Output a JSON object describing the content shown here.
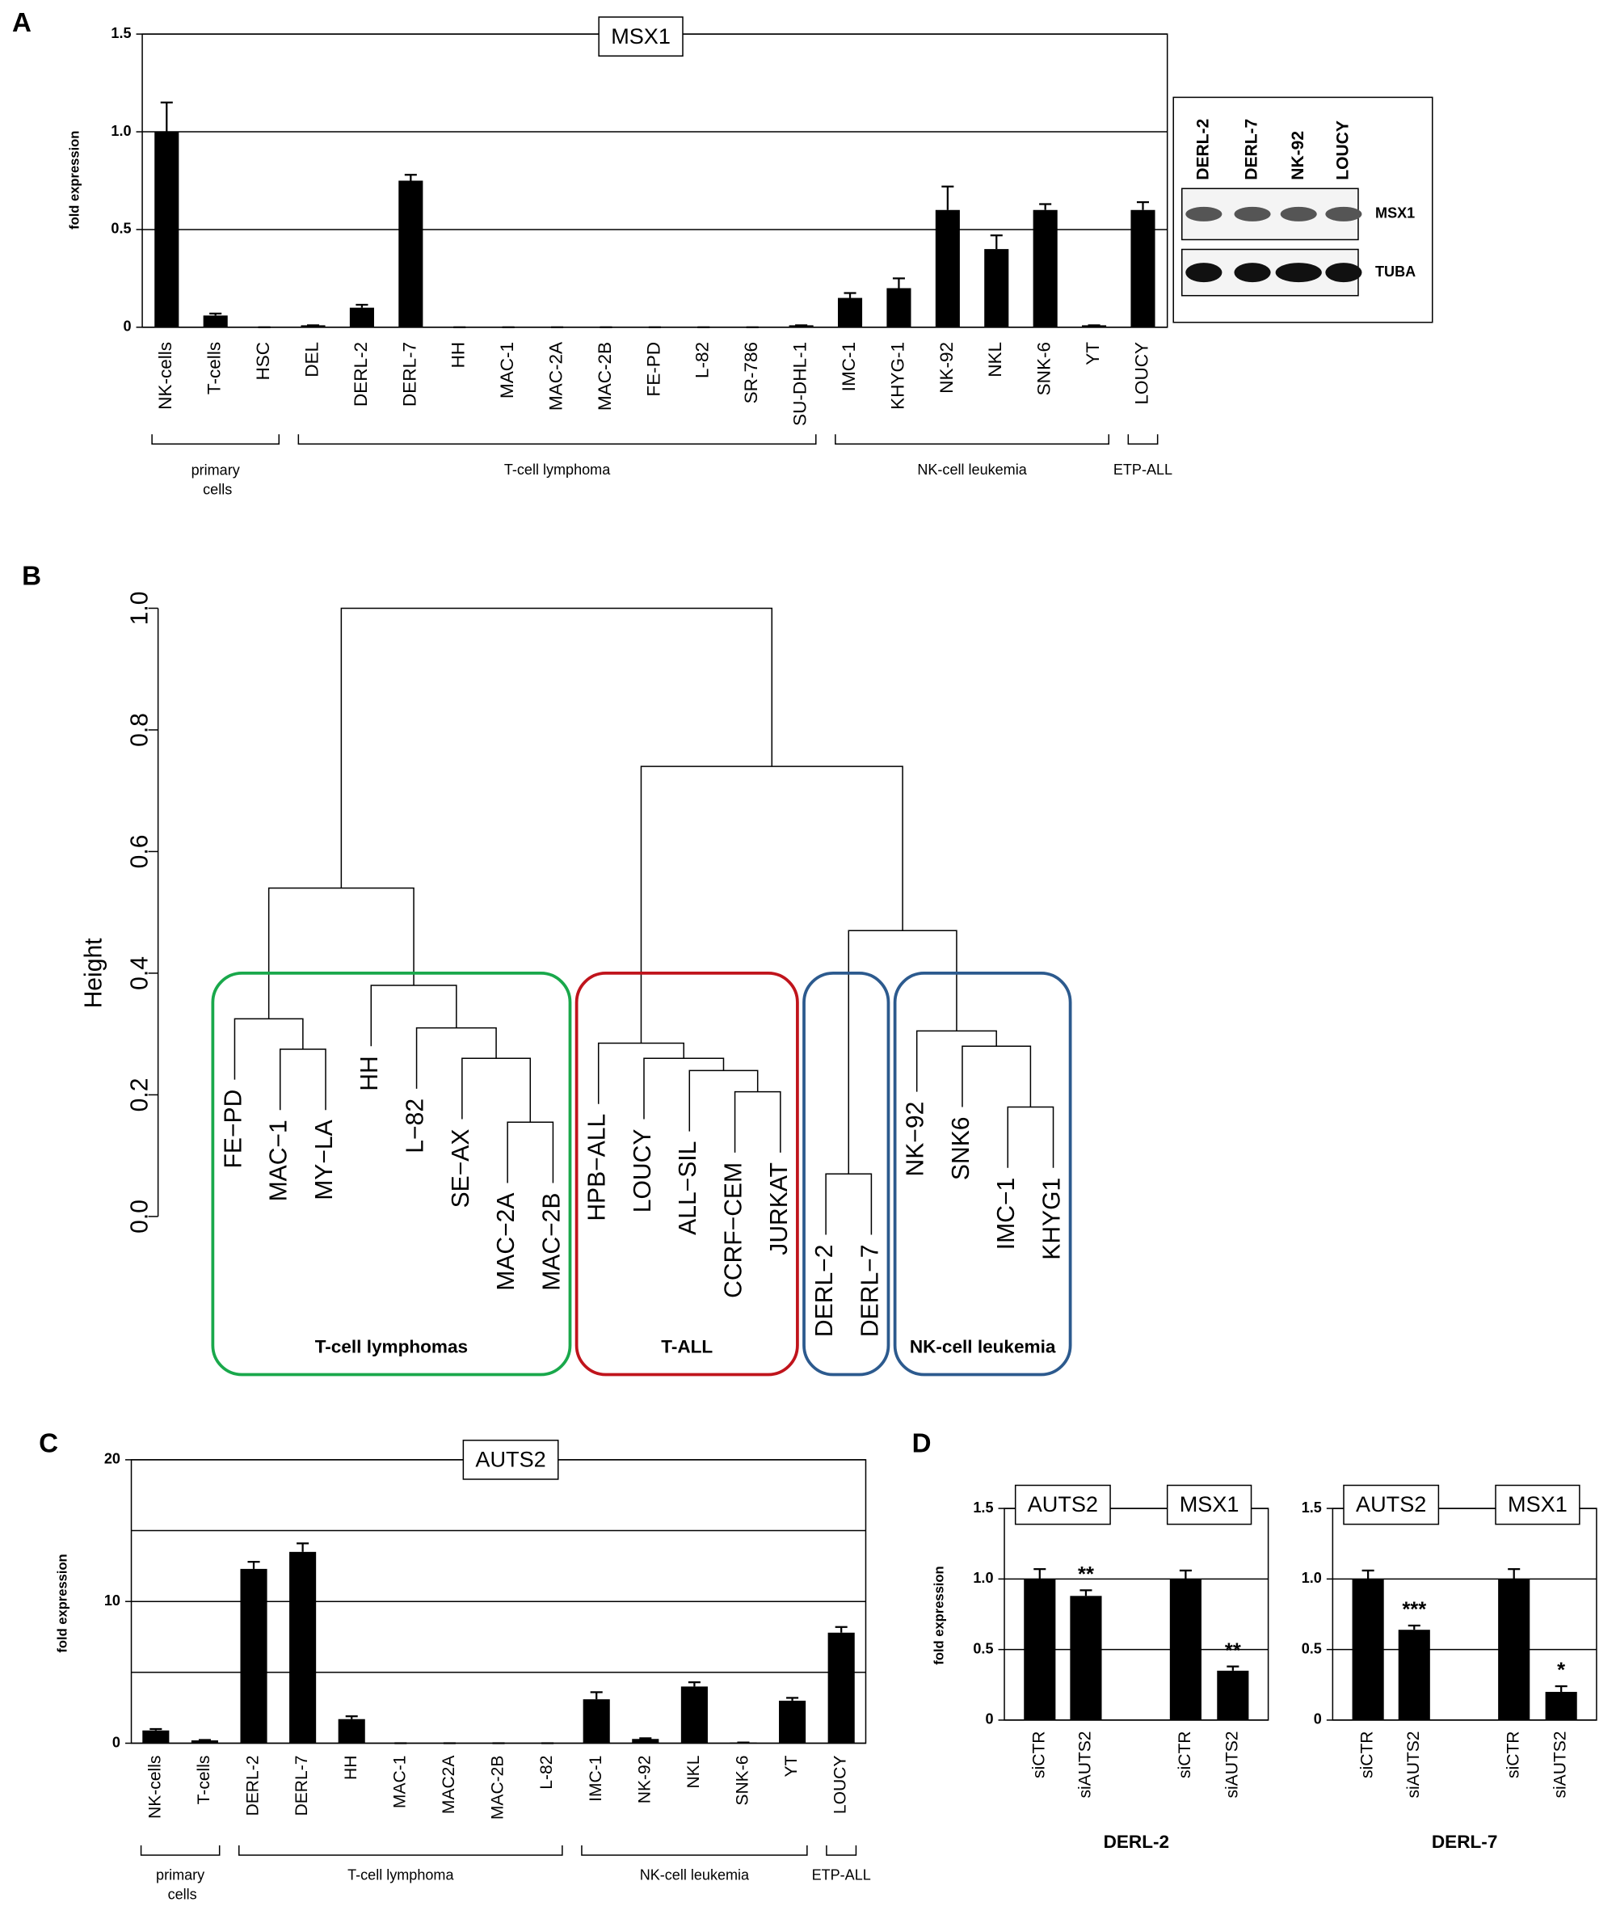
{
  "chart_data": [
    {
      "type": "bar",
      "panel": "A",
      "title": "MSX1",
      "ylabel": "fold expression",
      "categories": [
        "NK-cells",
        "T-cells",
        "HSC",
        "DEL",
        "DERL-2",
        "DERL-7",
        "HH",
        "MAC-1",
        "MAC-2A",
        "MAC-2B",
        "FE-PD",
        "L-82",
        "SR-786",
        "SU-DHL-1",
        "IMC-1",
        "KHYG-1",
        "NK-92",
        "NKL",
        "SNK-6",
        "YT",
        "LOUCY"
      ],
      "values": [
        1.0,
        0.06,
        0,
        0.01,
        0.1,
        0.75,
        0,
        0,
        0,
        0,
        0,
        0,
        0,
        0.01,
        0.15,
        0.2,
        0.6,
        0.4,
        0.6,
        0.01,
        0.6
      ],
      "errors": [
        0.15,
        0.01,
        0,
        0,
        0.015,
        0.03,
        0,
        0,
        0,
        0,
        0,
        0,
        0,
        0,
        0.025,
        0.05,
        0.12,
        0.07,
        0.03,
        0,
        0.04
      ],
      "color": "#000000",
      "ylim": [
        0,
        1.5
      ],
      "yticks": [
        0,
        0.5,
        {
          "value": 1,
          "label": "1.0"
        },
        {
          "value": 1.5,
          "label": "1.5"
        }
      ],
      "groups": [
        "primary cells",
        "T-cell lymphoma",
        "NK-cell leukemia",
        "ETP-ALL"
      ]
    },
    {
      "type": "blot",
      "lanes": [
        "DERL-2",
        "DERL-7",
        "NK-92",
        "LOUCY"
      ],
      "rows": [
        "MSX1",
        "TUBA"
      ]
    },
    {
      "type": "dendrogram",
      "panel": "B",
      "ylabel": "Height",
      "ylim": [
        0,
        1
      ],
      "yticks": [
        {
          "value": 0,
          "label": "0.0"
        },
        0.2,
        0.4,
        0.6,
        0.8,
        {
          "value": 1,
          "label": "1.0"
        }
      ],
      "tree": {
        "height": 1.0,
        "children": [
          {
            "height": 0.54,
            "children": [
              {
                "height": 0.325,
                "children": [
                  "FE−PD",
                  {
                    "height": 0.275,
                    "children": [
                      "MAC−1",
                      "MY−LA"
                    ]
                  }
                ]
              },
              {
                "height": 0.38,
                "children": [
                  "HH",
                  {
                    "height": 0.31,
                    "children": [
                      "L−82",
                      {
                        "height": 0.26,
                        "children": [
                          "SE−AX",
                          {
                            "height": 0.155,
                            "children": [
                              "MAC−2A",
                              "MAC−2B"
                            ]
                          }
                        ]
                      }
                    ]
                  }
                ]
              }
            ]
          },
          {
            "height": 0.74,
            "children": [
              {
                "height": 0.285,
                "children": [
                  "HPB−ALL",
                  {
                    "height": 0.26,
                    "children": [
                      "LOUCY",
                      {
                        "height": 0.24,
                        "children": [
                          "ALL−SIL",
                          {
                            "height": 0.205,
                            "children": [
                              "CCRF−CEM",
                              "JURKAT"
                            ]
                          }
                        ]
                      }
                    ]
                  }
                ]
              },
              {
                "height": 0.47,
                "children": [
                  {
                    "height": 0.07,
                    "children": [
                      "DERL−2",
                      "DERL−7"
                    ]
                  },
                  {
                    "height": 0.305,
                    "children": [
                      "NK−92",
                      {
                        "height": 0.28,
                        "children": [
                          "SNK6",
                          {
                            "height": 0.18,
                            "children": [
                              "IMC−1",
                              "KHYG1"
                            ]
                          }
                        ]
                      }
                    ]
                  }
                ]
              }
            ]
          }
        ]
      },
      "groups": [
        {
          "label": "T-cell lymphomas",
          "color": "#19a84b"
        },
        {
          "label": "T-ALL",
          "color": "#c0141c"
        },
        {
          "color": "#2c5a8e"
        },
        {
          "label": "NK-cell leukemia",
          "color": "#2c5a8e"
        }
      ]
    },
    {
      "type": "bar",
      "panel": "C",
      "title": "AUTS2",
      "ylabel": "fold expression",
      "categories": [
        "NK-cells",
        "T-cells",
        "DERL-2",
        "DERL-7",
        "HH",
        "MAC-1",
        "MAC2A",
        "MAC-2B",
        "L-82",
        "IMC-1",
        "NK-92",
        "NKL",
        "SNK-6",
        "YT",
        "LOUCY"
      ],
      "values": [
        0.9,
        0.2,
        12.3,
        13.5,
        1.7,
        0,
        0,
        0,
        0,
        3.1,
        0.3,
        4.0,
        0.05,
        3.0,
        7.8
      ],
      "errors": [
        0.1,
        0.03,
        0.5,
        0.6,
        0.2,
        0,
        0,
        0,
        0,
        0.5,
        0.05,
        0.3,
        0,
        0.2,
        0.4
      ],
      "color": "#000000",
      "ylim": [
        0,
        20
      ],
      "yticks": [
        0,
        10,
        20
      ],
      "minor_gridlines": [
        5,
        15
      ],
      "groups": [
        "primary cells",
        "T-cell lymphoma",
        "NK-cell leukemia",
        "ETP-ALL"
      ]
    },
    {
      "type": "bar",
      "panel": "D",
      "titles": [
        "AUTS2",
        "MSX1"
      ],
      "xlabel": "DERL-2",
      "ylabel": "fold expression",
      "categories": [
        "siCTR",
        "siAUTS2",
        "siCTR",
        "siAUTS2"
      ],
      "values": [
        1.0,
        0.88,
        1.0,
        0.35
      ],
      "errors": [
        0.07,
        0.04,
        0.06,
        0.03
      ],
      "annotations": [
        null,
        "**",
        null,
        "**"
      ],
      "color": "#000000",
      "ylim": [
        0,
        1.5
      ],
      "yticks": [
        0,
        0.5,
        {
          "value": 1,
          "label": "1.0"
        },
        {
          "value": 1.5,
          "label": "1.5"
        }
      ]
    },
    {
      "type": "bar",
      "titles": [
        "AUTS2",
        "MSX1"
      ],
      "xlabel": "DERL-7",
      "categories": [
        "siCTR",
        "siAUTS2",
        "siCTR",
        "siAUTS2"
      ],
      "values": [
        1.0,
        0.64,
        1.0,
        0.2
      ],
      "errors": [
        0.06,
        0.03,
        0.07,
        0.04
      ],
      "annotations": [
        null,
        "***",
        null,
        "*"
      ],
      "color": "#000000",
      "ylim": [
        0,
        1.5
      ],
      "yticks": [
        0,
        0.5,
        {
          "value": 1,
          "label": "1.0"
        },
        {
          "value": 1.5,
          "label": "1.5"
        }
      ]
    }
  ]
}
